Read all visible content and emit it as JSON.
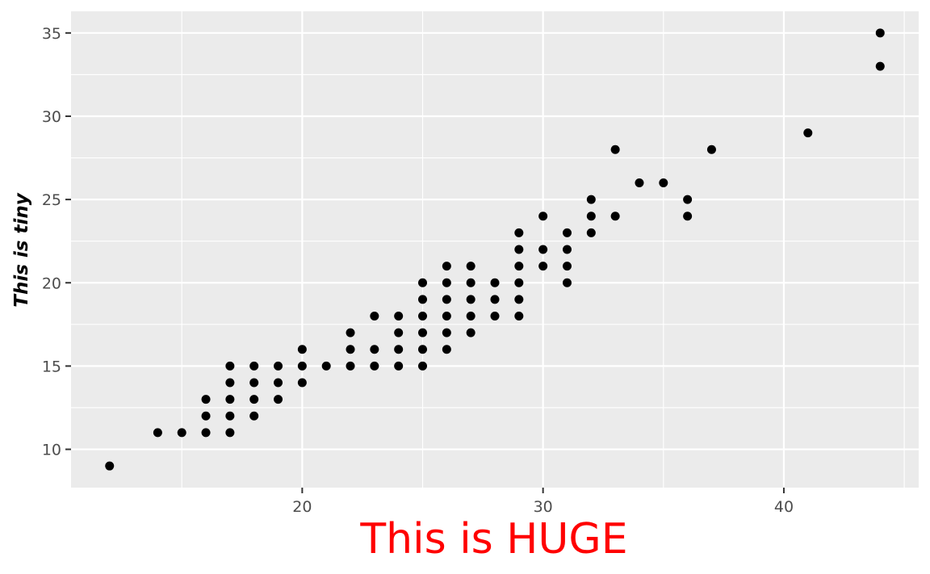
{
  "chart_data": {
    "type": "scatter",
    "title": "",
    "xlabel": "This is HUGE",
    "ylabel": "This is tiny",
    "xlim": [
      10.4,
      45.6
    ],
    "ylim": [
      7.7,
      36.3
    ],
    "x_ticks": [
      20,
      30,
      40
    ],
    "y_ticks": [
      10,
      15,
      20,
      25,
      30,
      35
    ],
    "grid": true,
    "legend": "none",
    "colors": {
      "panel": "#ebebeb",
      "grid": "#ffffff",
      "point": "#000000",
      "xlabel": "#ff0000",
      "tick_text": "#4d4d4d"
    },
    "points": [
      [
        12,
        9
      ],
      [
        14,
        11
      ],
      [
        15,
        11
      ],
      [
        16,
        11
      ],
      [
        16,
        12
      ],
      [
        16,
        13
      ],
      [
        17,
        11
      ],
      [
        17,
        12
      ],
      [
        17,
        13
      ],
      [
        17,
        14
      ],
      [
        17,
        15
      ],
      [
        18,
        12
      ],
      [
        18,
        13
      ],
      [
        18,
        14
      ],
      [
        18,
        15
      ],
      [
        19,
        13
      ],
      [
        19,
        14
      ],
      [
        19,
        15
      ],
      [
        20,
        14
      ],
      [
        20,
        15
      ],
      [
        20,
        16
      ],
      [
        21,
        15
      ],
      [
        22,
        15
      ],
      [
        22,
        16
      ],
      [
        22,
        17
      ],
      [
        23,
        15
      ],
      [
        23,
        16
      ],
      [
        23,
        18
      ],
      [
        24,
        15
      ],
      [
        24,
        16
      ],
      [
        24,
        17
      ],
      [
        24,
        18
      ],
      [
        25,
        15
      ],
      [
        25,
        16
      ],
      [
        25,
        17
      ],
      [
        25,
        18
      ],
      [
        25,
        19
      ],
      [
        25,
        20
      ],
      [
        26,
        16
      ],
      [
        26,
        17
      ],
      [
        26,
        18
      ],
      [
        26,
        19
      ],
      [
        26,
        20
      ],
      [
        26,
        21
      ],
      [
        27,
        17
      ],
      [
        27,
        18
      ],
      [
        27,
        19
      ],
      [
        27,
        20
      ],
      [
        27,
        21
      ],
      [
        28,
        18
      ],
      [
        28,
        19
      ],
      [
        28,
        20
      ],
      [
        29,
        18
      ],
      [
        29,
        19
      ],
      [
        29,
        20
      ],
      [
        29,
        21
      ],
      [
        29,
        22
      ],
      [
        29,
        23
      ],
      [
        30,
        21
      ],
      [
        30,
        22
      ],
      [
        30,
        24
      ],
      [
        31,
        20
      ],
      [
        31,
        21
      ],
      [
        31,
        22
      ],
      [
        31,
        23
      ],
      [
        32,
        23
      ],
      [
        32,
        24
      ],
      [
        32,
        25
      ],
      [
        33,
        24
      ],
      [
        33,
        28
      ],
      [
        34,
        26
      ],
      [
        35,
        26
      ],
      [
        36,
        24
      ],
      [
        36,
        25
      ],
      [
        37,
        28
      ],
      [
        41,
        29
      ],
      [
        44,
        33
      ],
      [
        44,
        35
      ]
    ]
  }
}
